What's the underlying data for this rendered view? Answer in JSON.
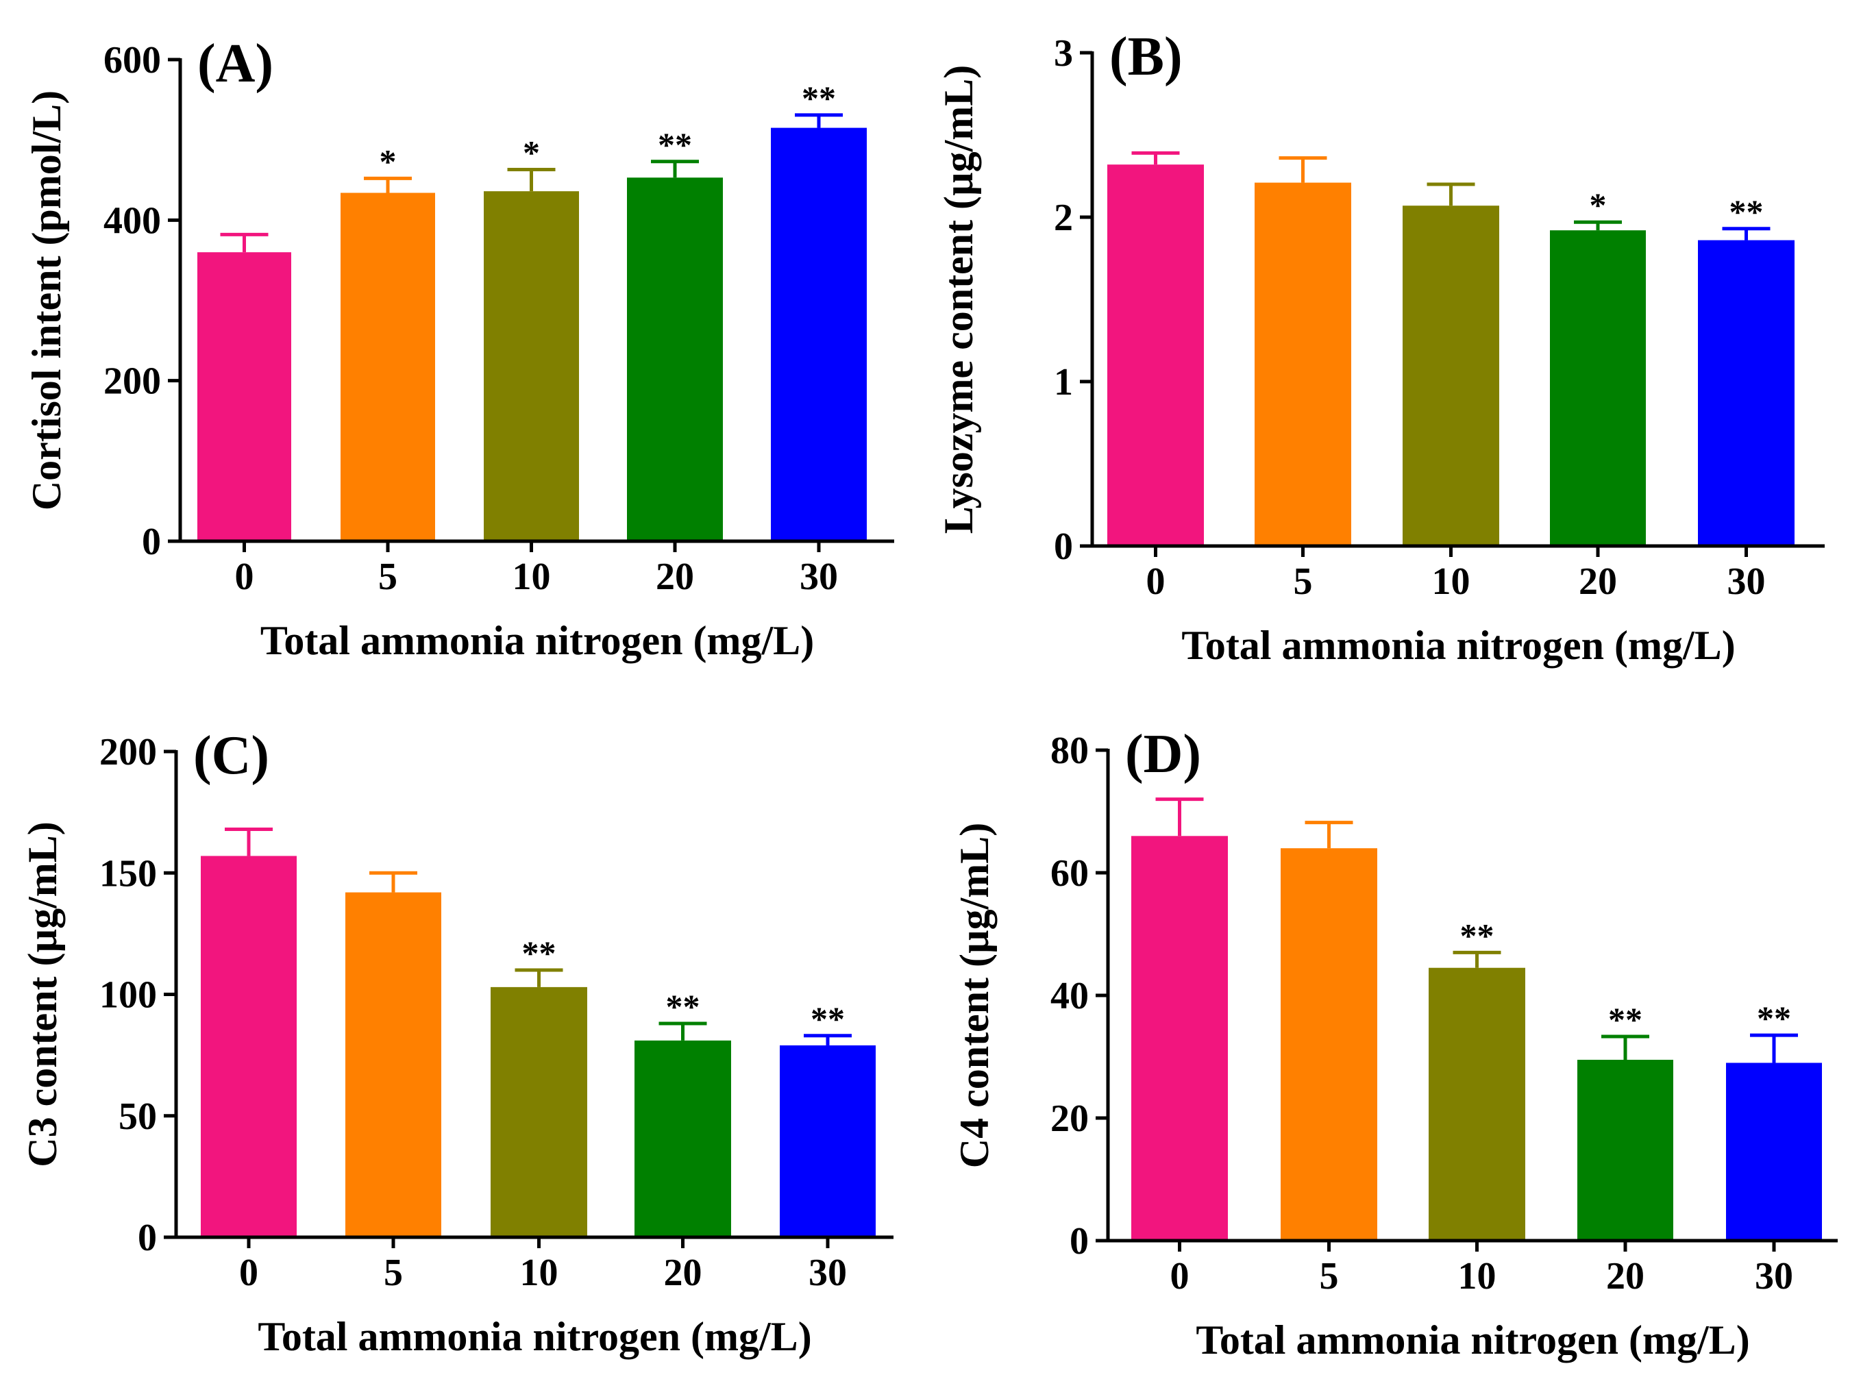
{
  "chart_data": [
    {
      "type": "bar",
      "panel_label": "(A)",
      "categories": [
        "0",
        "5",
        "10",
        "20",
        "30"
      ],
      "values": [
        360,
        434,
        436,
        453,
        515
      ],
      "errors": [
        22,
        18,
        27,
        20,
        16
      ],
      "significance": [
        "",
        "*",
        "*",
        "**",
        "**"
      ],
      "colors": [
        "#f2157e",
        "#ff8000",
        "#808000",
        "#008000",
        "#0000ff"
      ],
      "ylim": [
        0,
        600
      ],
      "yticks": [
        0,
        200,
        400,
        600
      ],
      "ytick_labels": [
        "0",
        "200",
        "400",
        "600"
      ],
      "xlabel": "Total ammonia nitrogen (mg/L)",
      "ylabel": "Cortisol intent (pmol/L)"
    },
    {
      "type": "bar",
      "panel_label": "(B)",
      "categories": [
        "0",
        "5",
        "10",
        "20",
        "30"
      ],
      "values": [
        2.32,
        2.21,
        2.07,
        1.92,
        1.86
      ],
      "errors": [
        0.07,
        0.15,
        0.13,
        0.05,
        0.07
      ],
      "significance": [
        "",
        "",
        "",
        "*",
        "**"
      ],
      "colors": [
        "#f2157e",
        "#ff8000",
        "#808000",
        "#008000",
        "#0000ff"
      ],
      "ylim": [
        0,
        3
      ],
      "yticks": [
        0,
        1,
        2,
        3
      ],
      "ytick_labels": [
        "0",
        "1",
        "2",
        "3"
      ],
      "xlabel": "Total ammonia nitrogen (mg/L)",
      "ylabel": "Lysozyme content (µg/mL)"
    },
    {
      "type": "bar",
      "panel_label": "(C)",
      "categories": [
        "0",
        "5",
        "10",
        "20",
        "30"
      ],
      "values": [
        157,
        142,
        103,
        81,
        79
      ],
      "errors": [
        11,
        8,
        7,
        7,
        4
      ],
      "significance": [
        "",
        "",
        "**",
        "**",
        "**"
      ],
      "colors": [
        "#f2157e",
        "#ff8000",
        "#808000",
        "#008000",
        "#0000ff"
      ],
      "ylim": [
        0,
        200
      ],
      "yticks": [
        0,
        50,
        100,
        150,
        200
      ],
      "ytick_labels": [
        "0",
        "50",
        "100",
        "150",
        "200"
      ],
      "xlabel": "Total ammonia nitrogen (mg/L)",
      "ylabel": "C3 content (µg/mL)"
    },
    {
      "type": "bar",
      "panel_label": "(D)",
      "categories": [
        "0",
        "5",
        "10",
        "20",
        "30"
      ],
      "values": [
        66,
        64,
        44.5,
        29.5,
        29
      ],
      "errors": [
        6,
        4.2,
        2.5,
        3.8,
        4.5
      ],
      "significance": [
        "",
        "",
        "**",
        "**",
        "**"
      ],
      "colors": [
        "#f2157e",
        "#ff8000",
        "#808000",
        "#008000",
        "#0000ff"
      ],
      "ylim": [
        0,
        80
      ],
      "yticks": [
        0,
        20,
        40,
        60,
        80
      ],
      "ytick_labels": [
        "0",
        "20",
        "40",
        "60",
        "80"
      ],
      "xlabel": "Total ammonia nitrogen (mg/L)",
      "ylabel": "C4 content (µg/mL)"
    }
  ]
}
